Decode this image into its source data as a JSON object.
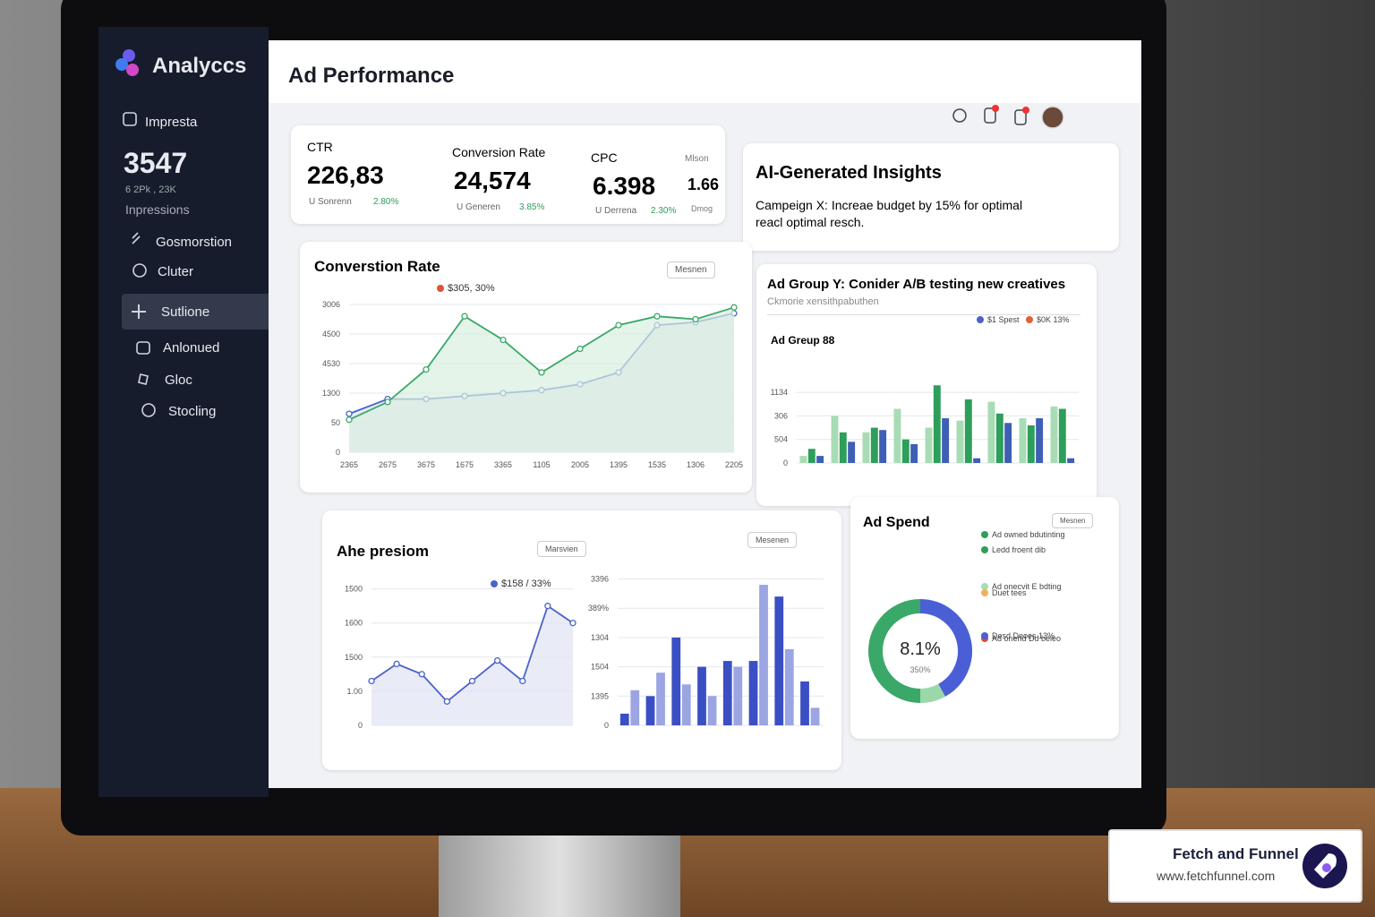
{
  "sidebar": {
    "brand": "Analyccs",
    "metric": {
      "label": "Impresta",
      "value": "3547",
      "sub": "6 2Pk , 23K",
      "caption": "Inpressions"
    },
    "menu": [
      "Gosmorstion",
      "Cluter",
      "Sutlione",
      "Anlonued",
      "Gloc",
      "Stocling"
    ]
  },
  "header": {
    "title": "Ad Performance"
  },
  "kpis": [
    {
      "label": "CTR",
      "value": "226,83",
      "note": "U Sonrenn",
      "change": "2.80%"
    },
    {
      "label": "Conversion Rate",
      "value": "24,574",
      "note": "U Generen",
      "change": "3.85%"
    },
    {
      "label": "CPC",
      "value": "6.398",
      "note": "U Derrena",
      "change": "2.30%"
    }
  ],
  "kpi_side": {
    "label": "Mlson",
    "value": "1.66",
    "note": "Dmog"
  },
  "insights": {
    "title": "AI-Generated Insights",
    "text": "Campeign X: Increae budget by 15% for optimal reacl optimal resch."
  },
  "chart_data": [
    {
      "type": "line",
      "title": "Converstion Rate",
      "button": "Mesnen",
      "annotation": "$305, 30%",
      "ylim": [
        0,
        5
      ],
      "yticks": [
        {
          "value": 0,
          "label": "0"
        },
        {
          "value": 1,
          "label": "50"
        },
        {
          "value": 2,
          "label": "1300"
        },
        {
          "value": 3,
          "label": "4530"
        },
        {
          "value": 4,
          "label": "4500"
        },
        {
          "value": 5,
          "label": "3006"
        }
      ],
      "categories": [
        "2365",
        "2675",
        "3675",
        "1675",
        "3365",
        "1105",
        "2005",
        "1395",
        "1535",
        "1306",
        "2205"
      ],
      "series": [
        {
          "color": "#4a63c9",
          "fill": "#dfe3f4",
          "values": [
            1.3,
            1.8,
            1.8,
            1.9,
            2.0,
            2.1,
            2.3,
            2.7,
            4.3,
            4.4,
            4.7
          ]
        },
        {
          "color": "#3aa868",
          "fill": "#d9f0e0",
          "values": [
            1.1,
            1.7,
            2.8,
            4.6,
            3.8,
            2.7,
            3.5,
            4.3,
            4.6,
            4.5,
            4.9
          ]
        }
      ]
    },
    {
      "type": "bar",
      "title": "Ad Group Y: Conider A/B testing new creatives",
      "subtitle": "Ckmorie xensithpabuthen",
      "label": "Ad Greup 88",
      "ylim": [
        0,
        3.5
      ],
      "yticks": [
        {
          "value": 0,
          "label": "0"
        },
        {
          "value": 1,
          "label": "504"
        },
        {
          "value": 2,
          "label": "306"
        },
        {
          "value": 3,
          "label": "1134"
        }
      ],
      "legend": [
        {
          "label": "$1 Spest",
          "color": "#4a63c9"
        },
        {
          "label": "$0K 13%",
          "color": "#e0603a"
        }
      ],
      "categories": [
        null,
        null,
        null,
        null,
        null,
        null,
        null,
        null,
        null
      ],
      "series": [
        {
          "color": "#a8dcb5",
          "values": [
            0.3,
            2.0,
            1.3,
            2.3,
            1.5,
            1.8,
            2.6,
            1.9,
            2.4
          ]
        },
        {
          "color": "#2e9e5b",
          "values": [
            0.6,
            1.3,
            1.5,
            1.0,
            3.3,
            2.7,
            2.1,
            1.6,
            2.3
          ]
        },
        {
          "color": "#3f5fb5",
          "values": [
            0.3,
            0.9,
            1.4,
            0.8,
            1.9,
            0.2,
            1.7,
            1.9,
            0.2
          ]
        }
      ]
    },
    {
      "type": "line",
      "title": "Ahe presiom",
      "button": "Marsvien",
      "annotation": "$158 / 33%",
      "ylim": [
        0,
        4.2
      ],
      "yticks": [
        {
          "value": 0,
          "label": "0"
        },
        {
          "value": 1,
          "label": "1.00"
        },
        {
          "value": 2,
          "label": "1500"
        },
        {
          "value": 3,
          "label": "1600"
        },
        {
          "value": 4,
          "label": "1500"
        }
      ],
      "categories": [
        null,
        null,
        null,
        null,
        null,
        null,
        null,
        null,
        null
      ],
      "series": [
        {
          "color": "#4a63c9",
          "fill": "#dfe3f4",
          "values": [
            1.3,
            1.8,
            1.5,
            0.7,
            1.3,
            1.9,
            1.3,
            3.5,
            3.0
          ]
        }
      ]
    },
    {
      "type": "bar",
      "button": "Mesenen",
      "ylim": [
        0,
        5.2
      ],
      "yticks": [
        {
          "value": 0,
          "label": "0"
        },
        {
          "value": 1,
          "label": "1395"
        },
        {
          "value": 2,
          "label": "1504"
        },
        {
          "value": 3,
          "label": "1304"
        },
        {
          "value": 4,
          "label": "389%"
        },
        {
          "value": 5,
          "label": "3396"
        }
      ],
      "categories": [
        null,
        null,
        null,
        null,
        null,
        null,
        null,
        null
      ],
      "series": [
        {
          "color": "#3b4fc4",
          "values": [
            0.4,
            1.0,
            3.0,
            2.0,
            2.2,
            2.2,
            4.4,
            1.5
          ]
        },
        {
          "color": "#9aa5e2",
          "values": [
            1.2,
            1.8,
            1.4,
            1.0,
            2.0,
            4.8,
            2.6,
            0.6
          ]
        }
      ]
    },
    {
      "type": "pie",
      "title": "Ad Spend",
      "button": "Mesnen",
      "center": "8.1%",
      "center_sub": "350%",
      "values": [
        42,
        8,
        50
      ],
      "colors": [
        "#4a5fd6",
        "#9bd8a9",
        "#3aa868"
      ],
      "legend": [
        {
          "label": "Ad owned bdutinting",
          "color": "#2e9e5b"
        },
        {
          "label": "Ledd froent dib",
          "color": "#2e9e5b"
        },
        {
          "label": "Ad onecvit E bdting",
          "color": "#a8dcb5"
        },
        {
          "label": "Duet tees",
          "color": "#f0b060"
        },
        {
          "label": "Ad onend Dd beieo",
          "color": "#e04a3a"
        },
        {
          "label": "Desd Deoes 13%",
          "color": "#4a5fd6"
        }
      ]
    }
  ],
  "badge": {
    "name": "Fetch and Funnel",
    "url": "www.fetchfunnel.com"
  }
}
